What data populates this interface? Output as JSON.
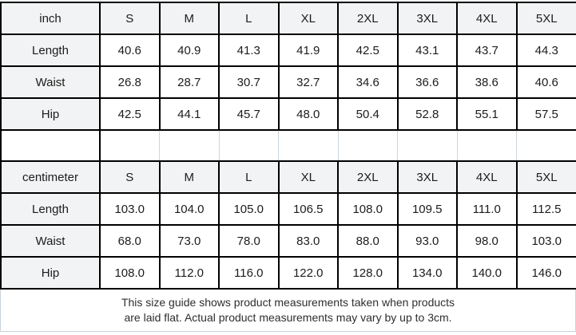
{
  "colors": {
    "table_border": "#000000",
    "header_background": "#f2f3f4",
    "cell_background": "#ffffff",
    "spacer_line": "#ccd6dd",
    "note_border": "#c9d3da",
    "text": "#1c1c1c"
  },
  "tables": [
    {
      "unit_label": "inch",
      "sizes": [
        "S",
        "M",
        "L",
        "XL",
        "2XL",
        "3XL",
        "4XL",
        "5XL"
      ],
      "rows": [
        {
          "label": "Length",
          "values": [
            "40.6",
            "40.9",
            "41.3",
            "41.9",
            "42.5",
            "43.1",
            "43.7",
            "44.3"
          ]
        },
        {
          "label": "Waist",
          "values": [
            "26.8",
            "28.7",
            "30.7",
            "32.7",
            "34.6",
            "36.6",
            "38.6",
            "40.6"
          ]
        },
        {
          "label": "Hip",
          "values": [
            "42.5",
            "44.1",
            "45.7",
            "48.0",
            "50.4",
            "52.8",
            "55.1",
            "57.5"
          ]
        }
      ]
    },
    {
      "unit_label": "centimeter",
      "sizes": [
        "S",
        "M",
        "L",
        "XL",
        "2XL",
        "3XL",
        "4XL",
        "5XL"
      ],
      "rows": [
        {
          "label": "Length",
          "values": [
            "103.0",
            "104.0",
            "105.0",
            "106.5",
            "108.0",
            "109.5",
            "111.0",
            "112.5"
          ]
        },
        {
          "label": "Waist",
          "values": [
            "68.0",
            "73.0",
            "78.0",
            "83.0",
            "88.0",
            "93.0",
            "98.0",
            "103.0"
          ]
        },
        {
          "label": "Hip",
          "values": [
            "108.0",
            "112.0",
            "116.0",
            "122.0",
            "128.0",
            "134.0",
            "140.0",
            "146.0"
          ]
        }
      ]
    }
  ],
  "footer": {
    "line1": "This size guide shows product measurements taken when products",
    "line2": "are laid flat. Actual product measurements may vary by up to 3cm."
  }
}
